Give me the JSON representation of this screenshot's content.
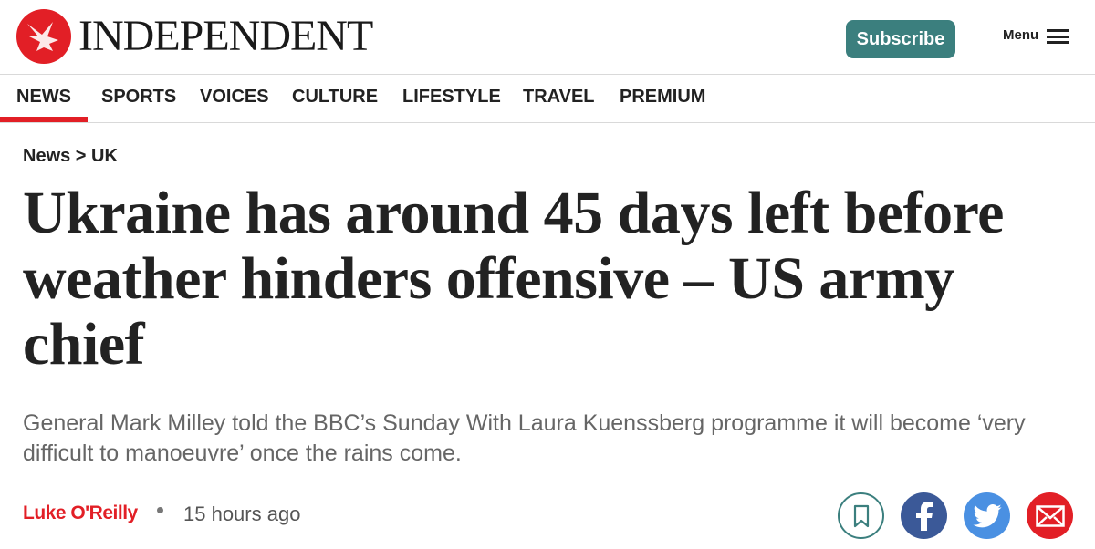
{
  "header": {
    "brand": "INDEPENDENT",
    "subscribe_label": "Subscribe",
    "menu_label": "Menu"
  },
  "nav": {
    "items": [
      "NEWS",
      "SPORTS",
      "VOICES",
      "CULTURE",
      "LIFESTYLE",
      "TRAVEL",
      "PREMIUM"
    ],
    "active": "NEWS"
  },
  "article": {
    "breadcrumb": "News > UK",
    "headline": "Ukraine has around 45 days left before weather hinders offensive – US army chief",
    "standfirst": "General Mark Milley told the BBC’s Sunday With Laura Kuenssberg programme it will become ‘very difficult to manoeuvre’ once the rains come.",
    "author": "Luke O'Reilly",
    "time": "15 hours ago"
  },
  "share": [
    {
      "icon": "bookmark-icon",
      "color": "#3b7f7e"
    },
    {
      "icon": "facebook-icon",
      "color": "#3b5998"
    },
    {
      "icon": "twitter-icon",
      "color": "#4a90e2"
    },
    {
      "icon": "email-icon",
      "color": "#e21f26"
    }
  ],
  "colors": {
    "brand_red": "#e21f26",
    "accent_teal": "#3b7f7e"
  }
}
